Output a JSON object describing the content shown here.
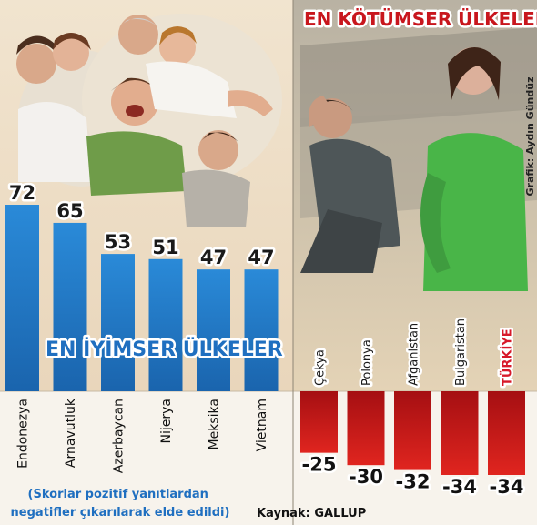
{
  "chart_data": [
    {
      "type": "bar",
      "title": "EN İYİMSER ÜLKELER",
      "categories": [
        "Endonezya",
        "Arnavutluk",
        "Azerbaycan",
        "Nijerya",
        "Meksika",
        "Vietnam"
      ],
      "values": [
        72,
        65,
        53,
        51,
        47,
        47
      ],
      "value_labels": [
        "72",
        "65",
        "53",
        "51",
        "47",
        "47"
      ],
      "bar_color": "#1f7fcf",
      "ylim": [
        0,
        80
      ]
    },
    {
      "type": "bar",
      "title": "EN KÖTÜMSER ÜLKELER",
      "categories": [
        "Çekya",
        "Polonya",
        "Afganistan",
        "Bulgaristan",
        "TÜRKİYE"
      ],
      "category_colors": [
        "#1a1a1a",
        "#1a1a1a",
        "#1a1a1a",
        "#1a1a1a",
        "#d7192a"
      ],
      "values": [
        -25,
        -30,
        -32,
        -34,
        -34
      ],
      "value_labels": [
        "-25",
        "-30",
        "-32",
        "-34",
        "-34"
      ],
      "bar_color": "#d01c1c",
      "ylim": [
        -40,
        0
      ]
    }
  ],
  "note": "(Skorlar pozitif yanıtlardan negatifler çıkarılarak elde edildi)",
  "source": "Kaynak: GALLUP",
  "credit": "Grafik: Aydın Gündüz",
  "colors": {
    "blue": "#1f7fcf",
    "red": "#d01c1c",
    "title_red": "#c8161d",
    "accent_red": "#d7192a"
  }
}
